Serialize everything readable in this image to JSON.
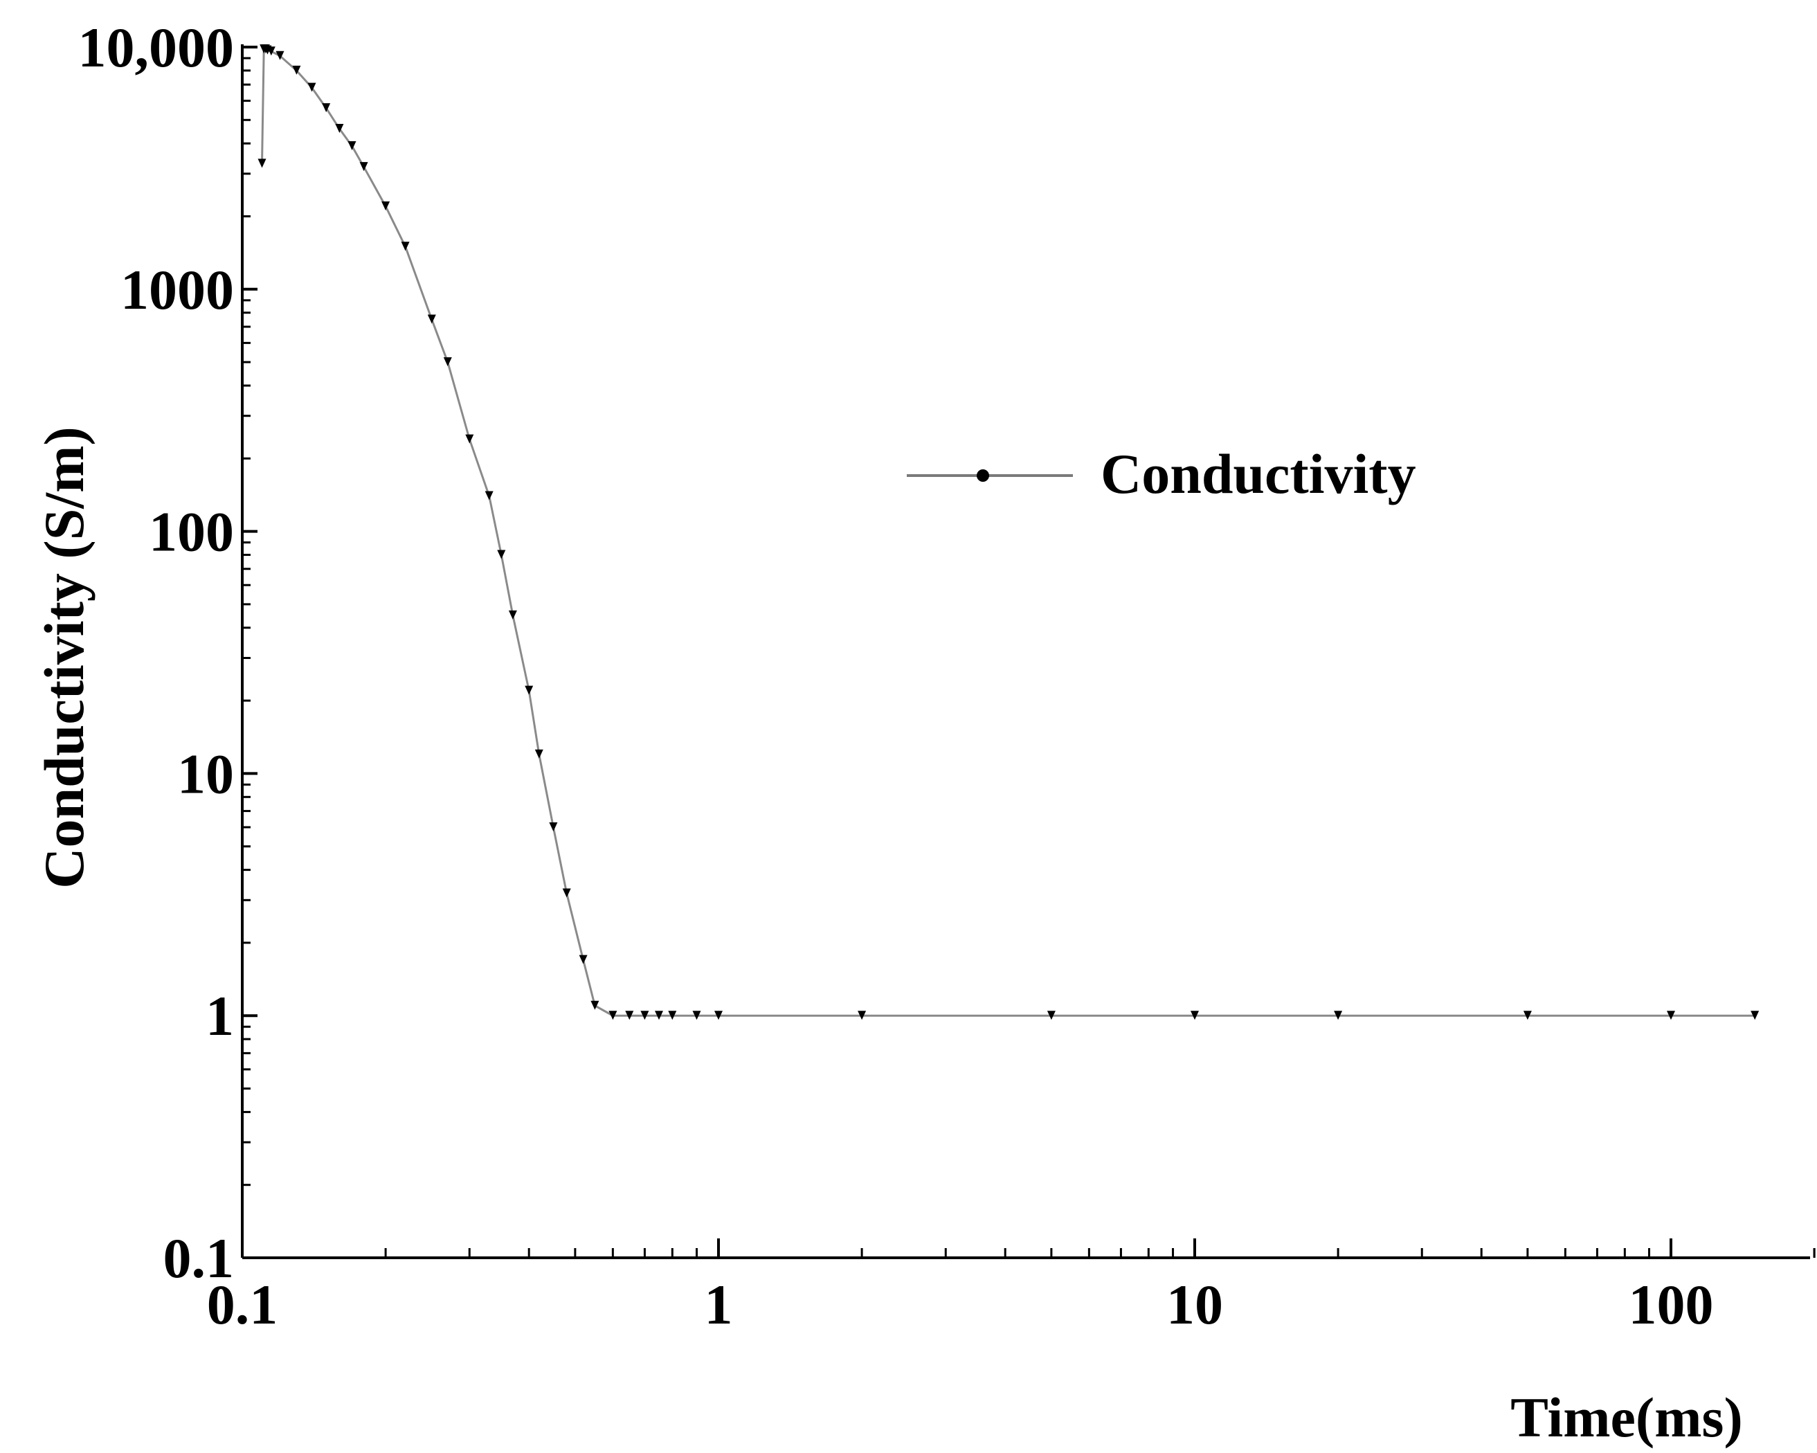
{
  "chart_data": {
    "type": "line",
    "title": "",
    "xlabel": "Time(ms)",
    "ylabel": "Conductivity (S/m)",
    "x_scale": "log",
    "y_scale": "log",
    "xlim": [
      0.1,
      200
    ],
    "ylim": [
      0.1,
      10000
    ],
    "x_ticks": [
      {
        "value": 0.1,
        "label": "0.1"
      },
      {
        "value": 1,
        "label": "1"
      },
      {
        "value": 10,
        "label": "10"
      },
      {
        "value": 100,
        "label": "100"
      }
    ],
    "y_ticks": [
      {
        "value": 0.1,
        "label": "0.1"
      },
      {
        "value": 1,
        "label": "1"
      },
      {
        "value": 10,
        "label": "10"
      },
      {
        "value": 100,
        "label": "100"
      },
      {
        "value": 1000,
        "label": "1000"
      },
      {
        "value": 10000,
        "label": "10,000"
      }
    ],
    "grid": false,
    "legend": {
      "position": "upper-center-right",
      "entries": [
        "Conductivity"
      ]
    },
    "series": [
      {
        "name": "Conductivity",
        "color": "#000000",
        "line_color": "#8a8a8a",
        "marker": "triangle-down",
        "x": [
          0.11,
          0.111,
          0.112,
          0.113,
          0.115,
          0.12,
          0.13,
          0.14,
          0.15,
          0.16,
          0.17,
          0.18,
          0.2,
          0.22,
          0.25,
          0.27,
          0.3,
          0.33,
          0.35,
          0.37,
          0.4,
          0.42,
          0.45,
          0.48,
          0.52,
          0.55,
          0.6,
          0.65,
          0.7,
          0.75,
          0.8,
          0.9,
          1,
          2,
          5,
          10,
          20,
          50,
          100,
          150
        ],
        "y": [
          3300,
          9800,
          9800,
          9700,
          9600,
          9200,
          8000,
          6800,
          5600,
          4600,
          3900,
          3200,
          2200,
          1500,
          750,
          500,
          240,
          140,
          80,
          45,
          22,
          12,
          6,
          3.2,
          1.7,
          1.1,
          1.0,
          1.0,
          1.0,
          1.0,
          1.0,
          1.0,
          1.0,
          1.0,
          1.0,
          1.0,
          1.0,
          1.0,
          1.0,
          1.0
        ]
      }
    ]
  }
}
